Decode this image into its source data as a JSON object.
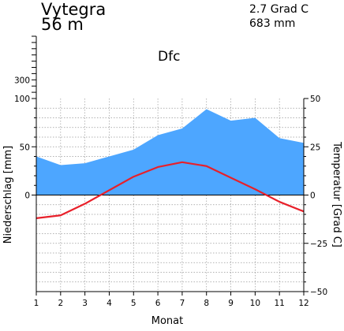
{
  "header": {
    "station": "Vytegra",
    "elevation": "56 m",
    "mean_temperature": "2.7 Grad C",
    "annual_precipitation": "683 mm",
    "climate_class": "Dfc"
  },
  "chart_data": {
    "type": "area",
    "xlabel": "Monat",
    "ylabel_left": "Niederschlag [mm]",
    "ylabel_right": "Temperatur [Grad C]",
    "x": [
      1,
      2,
      3,
      4,
      5,
      6,
      7,
      8,
      9,
      10,
      11,
      12
    ],
    "x_tick_labels": [
      "1",
      "2",
      "3",
      "4",
      "5",
      "6",
      "7",
      "8",
      "9",
      "10",
      "11",
      "12"
    ],
    "left_axis": {
      "range": [
        -100,
        100
      ],
      "tick_labels": [
        "0",
        "50",
        "100"
      ],
      "upper_tick_label": "300"
    },
    "right_axis": {
      "range": [
        -50,
        50
      ],
      "tick_labels": [
        "−50",
        "−25",
        "0",
        "25",
        "50"
      ]
    },
    "grid": true,
    "colors": {
      "precipitation_fill": "#4da6ff",
      "temperature_line": "#e8202a",
      "grid": "#999999",
      "axis": "#000000"
    },
    "series": [
      {
        "kind": "precipitation",
        "unit": "mm",
        "values": [
          40,
          31,
          33,
          40,
          47,
          62,
          69,
          89,
          77,
          80,
          59,
          54
        ]
      },
      {
        "kind": "temperature",
        "unit": "Grad C",
        "values": [
          -12,
          -10.5,
          -4.5,
          2.5,
          9.5,
          14.5,
          17,
          15,
          9,
          3,
          -3.5,
          -8.5
        ]
      }
    ]
  }
}
